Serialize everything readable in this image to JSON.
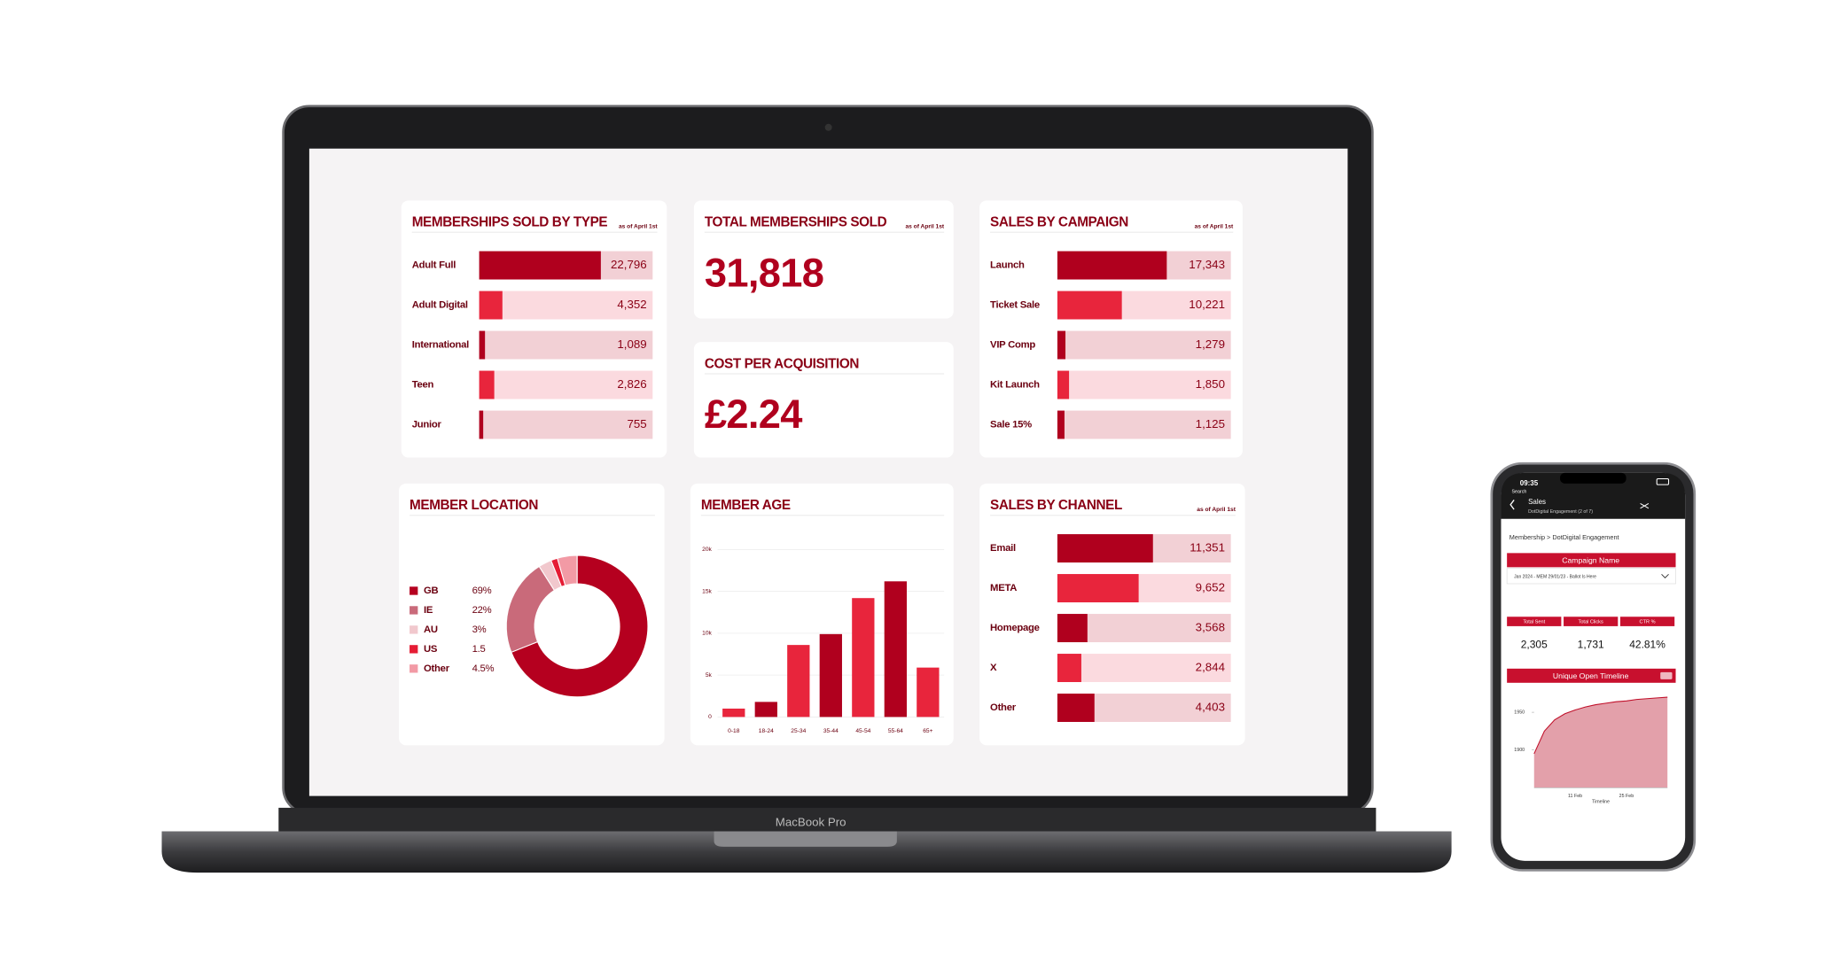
{
  "device": "MacBook Pro",
  "chart_data": [
    {
      "type": "bar",
      "orientation": "horizontal",
      "title": "MEMBERSHIPS SOLD BY TYPE",
      "note": "as of April 1st",
      "categories": [
        "Adult Full",
        "Adult Digital",
        "International",
        "Teen",
        "Junior"
      ],
      "values": [
        22796,
        4352,
        1089,
        2826,
        755
      ],
      "value_labels": [
        "22,796",
        "4,352",
        "1,089",
        "2,826",
        "755"
      ],
      "xlim": [
        0,
        32500
      ],
      "colors": [
        "#b0001e",
        "#e8253c",
        "#b0001e",
        "#e8253c",
        "#b0001e"
      ],
      "track_colors": [
        "#f2d0d5",
        "#fbdadf",
        "#f2d0d5",
        "#fbdadf",
        "#f2d0d5"
      ]
    },
    {
      "type": "bar",
      "orientation": "horizontal",
      "title": "SALES BY CAMPAIGN",
      "note": "as of April 1st",
      "categories": [
        "Launch",
        "Ticket Sale",
        "VIP Comp",
        "Kit Launch",
        "Sale 15%"
      ],
      "values": [
        17343,
        10221,
        1279,
        1850,
        1125
      ],
      "value_labels": [
        "17,343",
        "10,221",
        "1,279",
        "1,850",
        "1,125"
      ],
      "xlim": [
        0,
        27500
      ],
      "colors": [
        "#b0001e",
        "#e8253c",
        "#b0001e",
        "#e8253c",
        "#b0001e"
      ],
      "track_colors": [
        "#f2d0d5",
        "#fbdadf",
        "#f2d0d5",
        "#fbdadf",
        "#f2d0d5"
      ]
    },
    {
      "type": "pie",
      "hole": true,
      "title": "MEMBER LOCATION",
      "categories": [
        "GB",
        "IE",
        "AU",
        "US",
        "Other"
      ],
      "values": [
        69,
        22,
        3,
        1.5,
        4.5
      ],
      "value_labels": [
        "69%",
        "22%",
        "3%",
        "1.5",
        "4.5%"
      ],
      "colors": [
        "#b5001f",
        "#c96a7a",
        "#f1c8cd",
        "#e51c34",
        "#f29aa5"
      ]
    },
    {
      "type": "bar",
      "orientation": "vertical",
      "title": "MEMBER AGE",
      "categories": [
        "0-18",
        "18-24",
        "25-34",
        "35-44",
        "45-54",
        "55-64",
        "65+"
      ],
      "values": [
        1000,
        1800,
        8600,
        9900,
        14200,
        16200,
        5900
      ],
      "ylim": [
        0,
        20000
      ],
      "yticks": [
        0,
        {
          "value": 5000,
          "label": "5k"
        },
        {
          "value": 10000,
          "label": "10k"
        },
        {
          "value": 15000,
          "label": "15k"
        },
        {
          "value": 20000,
          "label": "20k"
        }
      ],
      "grid": true,
      "colors": [
        "#e8253c",
        "#b0001e",
        "#e8253c",
        "#b0001e",
        "#e8253c",
        "#b0001e",
        "#e8253c"
      ]
    },
    {
      "type": "bar",
      "orientation": "horizontal",
      "title": "SALES BY CHANNEL",
      "note": "as of April 1st",
      "categories": [
        "Email",
        "META",
        "Homepage",
        "X",
        "Other"
      ],
      "values": [
        11351,
        9652,
        3568,
        2844,
        4403
      ],
      "value_labels": [
        "11,351",
        "9,652",
        "3,568",
        "2,844",
        "4,403"
      ],
      "xlim": [
        0,
        20600
      ],
      "colors": [
        "#b0001e",
        "#e8253c",
        "#b0001e",
        "#e8253c",
        "#b0001e"
      ],
      "track_colors": [
        "#f2d0d5",
        "#fbdadf",
        "#f2d0d5",
        "#fbdadf",
        "#f2d0d5"
      ]
    },
    {
      "type": "area",
      "title": "Unique Open Timeline",
      "xlabel": "Timeline",
      "categories": [
        null,
        null,
        null,
        null,
        "11 Feb",
        null,
        null,
        null,
        null,
        "25 Feb",
        null,
        null,
        null,
        null
      ],
      "values": [
        1895,
        1925,
        1940,
        1948,
        1953,
        1957,
        1960,
        1962,
        1964,
        1965,
        1967,
        1968,
        1969,
        1970
      ],
      "ylim": [
        1850,
        1975
      ],
      "yticks": [
        1900,
        1950
      ],
      "color": "#c0102a",
      "fill": "#e3a0aa"
    }
  ],
  "kpis": [
    {
      "title": "TOTAL MEMBERSHIPS SOLD",
      "note": "as of April 1st",
      "value": "31,818"
    },
    {
      "title": "COST PER ACQUISITION",
      "value": "£2.24"
    }
  ],
  "phone": {
    "time": "09:35",
    "back": "Search",
    "title": "Sales",
    "subtitle": "DotDigital Engagement (2 of 7)",
    "breadcrumb": "Membership > DotDigital Engagement",
    "filter_title": "Campaign Name",
    "filter_value": "Jan 2024 - MEM 29/01/23 - Ballot Is Here",
    "kpis": [
      {
        "label": "Total Sent",
        "value": "2,305"
      },
      {
        "label": "Total Clicks",
        "value": "1,731"
      },
      {
        "label": "CTR %",
        "value": "42.81%"
      }
    ]
  }
}
